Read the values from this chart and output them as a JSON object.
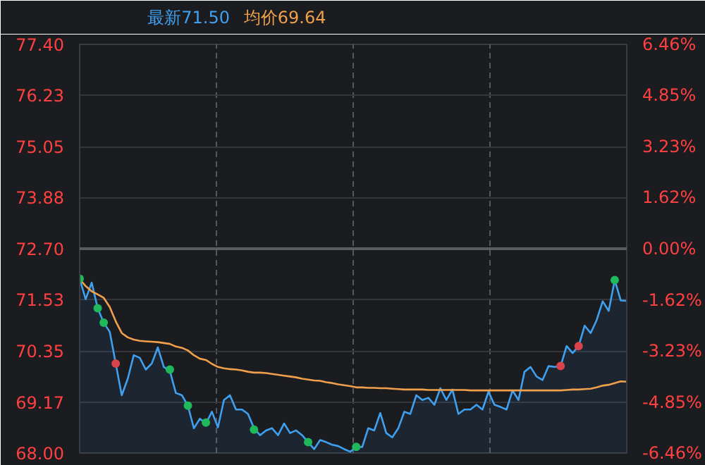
{
  "chart_data": {
    "type": "area",
    "annotations": [
      "最新71.50",
      "均价69.64"
    ],
    "categories": [
      null,
      null,
      null,
      null,
      null,
      null,
      null,
      null,
      null,
      null,
      null,
      null,
      null,
      null,
      null,
      null,
      null,
      null,
      null,
      null,
      null,
      null,
      null,
      null,
      null,
      null,
      null,
      null,
      null,
      null,
      null,
      null,
      null,
      null,
      null,
      null,
      null,
      null,
      null,
      null,
      null,
      null,
      null,
      null,
      null,
      null,
      null,
      null,
      null,
      null,
      null,
      null,
      null,
      null,
      null,
      null,
      null,
      null,
      null,
      null,
      null,
      null,
      null,
      null,
      null,
      null,
      null,
      null,
      null,
      null,
      null,
      null,
      null,
      null,
      null,
      null,
      null,
      null,
      null,
      null,
      null,
      null,
      null,
      null,
      null,
      null,
      null,
      null,
      null,
      null,
      null,
      null
    ],
    "ylim": [
      68.0,
      77.4
    ],
    "yticks": [
      {
        "value": 68.0,
        "label": "68.00"
      },
      {
        "value": 69.17,
        "label": "69.17"
      },
      {
        "value": 70.35,
        "label": "70.35"
      },
      {
        "value": 71.53,
        "label": "71.53"
      },
      {
        "value": 72.7,
        "label": "72.70"
      },
      {
        "value": 73.88,
        "label": "73.88"
      },
      {
        "value": 75.05,
        "label": "75.05"
      },
      {
        "value": 76.23,
        "label": "76.23"
      },
      {
        "value": 77.4,
        "label": "77.40"
      }
    ],
    "y2lim": [
      -6.46,
      6.46
    ],
    "y2ticks": [
      {
        "value": -6.46,
        "label": "-6.46%"
      },
      {
        "value": -4.85,
        "label": "-4.85%"
      },
      {
        "value": -3.23,
        "label": "-3.23%"
      },
      {
        "value": -1.62,
        "label": "-1.62%"
      },
      {
        "value": 0,
        "label": "0.00%"
      },
      {
        "value": 1.62,
        "label": "1.62%"
      },
      {
        "value": 3.23,
        "label": "3.23%"
      },
      {
        "value": 4.85,
        "label": "4.85%"
      },
      {
        "value": 6.46,
        "label": "6.46%"
      }
    ],
    "tick_labels": "y",
    "grid": true,
    "ref_lines": [
      {
        "axis": "y",
        "value": 72.7,
        "label": null,
        "color": "#5a5c62"
      }
    ],
    "series": [
      {
        "color": "#3fa0f0",
        "values": [
          72.01,
          71.54,
          71.92,
          71.33,
          71.0,
          70.79,
          70.06,
          69.33,
          69.71,
          70.25,
          70.19,
          69.92,
          70.06,
          70.43,
          69.98,
          69.89,
          69.38,
          69.33,
          69.09,
          68.57,
          68.79,
          68.68,
          68.95,
          68.59,
          69.22,
          69.33,
          69.0,
          69.0,
          68.9,
          68.57,
          68.41,
          68.52,
          68.57,
          68.41,
          68.68,
          68.46,
          68.52,
          68.41,
          68.25,
          68.09,
          68.3,
          68.25,
          68.19,
          68.16,
          68.09,
          68.03,
          68.14,
          68.14,
          68.57,
          68.52,
          68.92,
          68.46,
          68.36,
          68.57,
          68.95,
          68.9,
          69.33,
          69.22,
          69.27,
          69.11,
          69.49,
          69.22,
          69.46,
          68.9,
          69.0,
          69.0,
          69.11,
          69.0,
          69.41,
          69.11,
          69.06,
          69.0,
          69.44,
          69.22,
          69.87,
          69.98,
          69.76,
          69.68,
          70.0,
          69.98,
          70.0,
          70.46,
          70.3,
          70.46,
          70.93,
          70.76,
          71.06,
          71.49,
          71.27,
          71.98,
          71.51,
          71.5
        ]
      },
      {
        "type": "line",
        "color": "#f0a04b",
        "values": [
          72.0,
          71.84,
          71.72,
          71.65,
          71.57,
          71.36,
          71.03,
          70.76,
          70.66,
          70.61,
          70.58,
          70.57,
          70.56,
          70.55,
          70.53,
          70.51,
          70.45,
          70.42,
          70.36,
          70.25,
          70.17,
          70.14,
          70.05,
          69.98,
          69.95,
          69.93,
          69.92,
          69.9,
          69.87,
          69.85,
          69.85,
          69.84,
          69.82,
          69.8,
          69.78,
          69.76,
          69.74,
          69.71,
          69.69,
          69.67,
          69.66,
          69.63,
          69.61,
          69.58,
          69.56,
          69.54,
          69.51,
          69.51,
          69.5,
          69.5,
          69.49,
          69.49,
          69.48,
          69.47,
          69.46,
          69.46,
          69.46,
          69.46,
          69.45,
          69.45,
          69.45,
          69.45,
          69.45,
          69.45,
          69.45,
          69.44,
          69.44,
          69.44,
          69.44,
          69.44,
          69.44,
          69.44,
          69.44,
          69.44,
          69.44,
          69.44,
          69.44,
          69.44,
          69.44,
          69.44,
          69.44,
          69.45,
          69.46,
          69.46,
          69.47,
          69.48,
          69.51,
          69.55,
          69.57,
          69.61,
          69.65,
          69.64
        ]
      },
      {
        "type": "scatter",
        "marker": "circle",
        "values": [
          72.01,
          null,
          null,
          71.33,
          71.0,
          null,
          70.06,
          null,
          null,
          null,
          null,
          null,
          null,
          null,
          null,
          69.92,
          null,
          null,
          69.09,
          null,
          null,
          68.7,
          null,
          null,
          null,
          null,
          null,
          null,
          null,
          68.54,
          null,
          null,
          null,
          null,
          null,
          null,
          null,
          null,
          68.25,
          null,
          null,
          null,
          null,
          null,
          null,
          null,
          68.14,
          null,
          null,
          null,
          null,
          null,
          null,
          null,
          null,
          null,
          null,
          null,
          null,
          null,
          null,
          null,
          null,
          null,
          null,
          null,
          null,
          null,
          null,
          null,
          null,
          null,
          null,
          null,
          null,
          null,
          null,
          null,
          null,
          null,
          70.0,
          null,
          null,
          70.46,
          null,
          null,
          null,
          null,
          null,
          71.98,
          null,
          null
        ],
        "colors": [
          "#1fb85a",
          null,
          null,
          "#1fb85a",
          "#1fb85a",
          null,
          "#d9434a",
          null,
          null,
          null,
          null,
          null,
          null,
          null,
          null,
          "#1fb85a",
          null,
          null,
          "#1fb85a",
          null,
          null,
          "#1fb85a",
          null,
          null,
          null,
          null,
          null,
          null,
          null,
          "#1fb85a",
          null,
          null,
          null,
          null,
          null,
          null,
          null,
          null,
          "#1fb85a",
          null,
          null,
          null,
          null,
          null,
          null,
          null,
          "#1fb85a",
          null,
          null,
          null,
          null,
          null,
          null,
          null,
          null,
          null,
          null,
          null,
          null,
          null,
          null,
          null,
          null,
          null,
          null,
          null,
          null,
          null,
          null,
          null,
          null,
          null,
          null,
          null,
          null,
          null,
          null,
          null,
          null,
          null,
          "#d9434a",
          null,
          null,
          "#d9434a",
          null,
          null,
          null,
          null,
          null,
          "#1fb85a",
          null,
          null
        ]
      }
    ]
  }
}
